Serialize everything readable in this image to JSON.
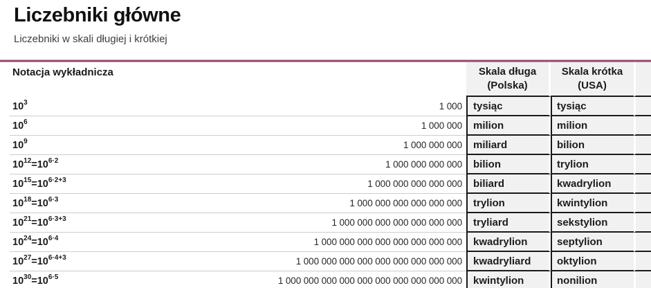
{
  "page": {
    "title": "Liczebniki główne",
    "subtitle": "Liczebniki w skali długiej i krótkiej"
  },
  "table": {
    "notation_header": "Notacja wykładnicza",
    "long_scale_header": {
      "line1": "Skala długa",
      "line2": "(Polska)"
    },
    "short_scale_header": {
      "line1": "Skala krótka",
      "line2": "(USA)"
    },
    "notation_base": "10",
    "notation_equals": "=10",
    "rows": [
      {
        "power": "3",
        "factors": "",
        "value": "1 000",
        "long_scale": "tysiąc",
        "short_scale": "tysiąc"
      },
      {
        "power": "6",
        "factors": "",
        "value": "1 000 000",
        "long_scale": "milion",
        "short_scale": "milion"
      },
      {
        "power": "9",
        "factors": "",
        "value": "1 000 000 000",
        "long_scale": "miliard",
        "short_scale": "bilion"
      },
      {
        "power": "12",
        "factors": "6·2",
        "value": "1 000 000 000 000",
        "long_scale": "bilion",
        "short_scale": "trylion"
      },
      {
        "power": "15",
        "factors": "6·2+3",
        "value": "1 000 000 000 000 000",
        "long_scale": "biliard",
        "short_scale": "kwadrylion"
      },
      {
        "power": "18",
        "factors": "6·3",
        "value": "1 000 000 000 000 000 000",
        "long_scale": "trylion",
        "short_scale": "kwintylion"
      },
      {
        "power": "21",
        "factors": "6·3+3",
        "value": "1 000 000 000 000 000 000 000",
        "long_scale": "tryliard",
        "short_scale": "sekstylion"
      },
      {
        "power": "24",
        "factors": "6·4",
        "value": "1 000 000 000 000 000 000 000 000",
        "long_scale": "kwadrylion",
        "short_scale": "septylion"
      },
      {
        "power": "27",
        "factors": "6·4+3",
        "value": "1 000 000 000 000 000 000 000 000 000",
        "long_scale": "kwadryliard",
        "short_scale": "oktylion"
      },
      {
        "power": "30",
        "factors": "6·5",
        "value": "1 000 000 000 000 000 000 000 000 000 000",
        "long_scale": "kwintylion",
        "short_scale": "nonilion"
      }
    ],
    "colors": {
      "accent_rule": "#94476b",
      "column_bg": "#f1f1f1",
      "light_separator": "#cccccc",
      "dark_separator": "#191919"
    }
  }
}
